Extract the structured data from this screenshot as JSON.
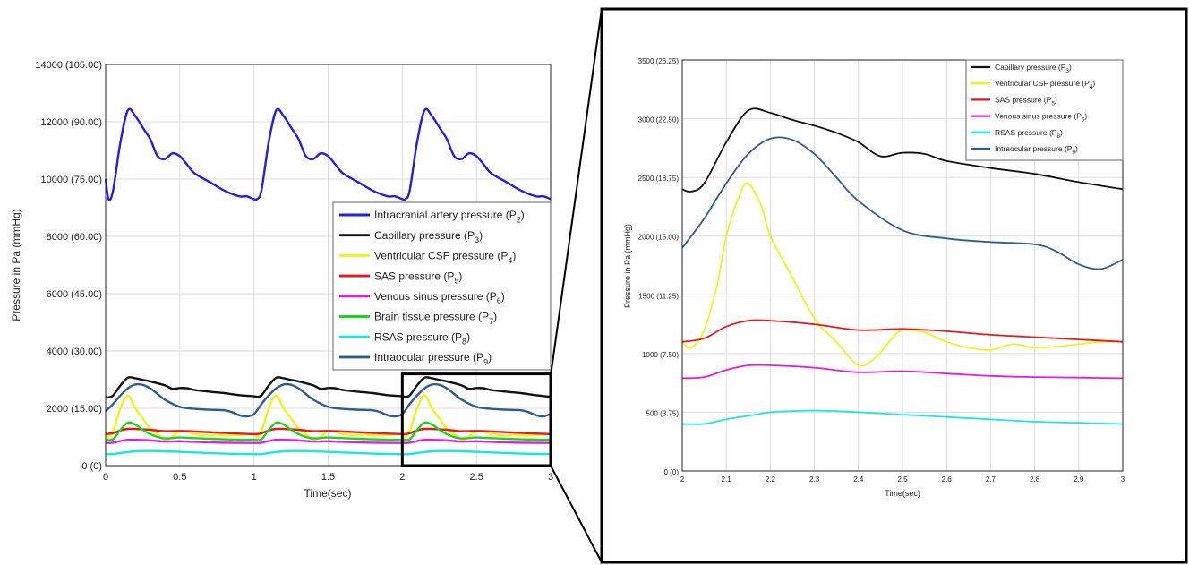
{
  "chart_data": [
    {
      "type": "line",
      "xlabel": "Time(sec)",
      "ylabel": "Pressure in Pa (mmHg)",
      "xlim": [
        0,
        3
      ],
      "ylim": [
        0,
        14000
      ],
      "xticks": [
        "0",
        "0.5",
        "1",
        "1.5",
        "2",
        "2.5",
        "3"
      ],
      "yticks": [
        "0 (0)",
        "2000 (15.00)",
        "4000 (30.00)",
        "6000 (45.00)",
        "8000 (60.00)",
        "10000 (75.00)",
        "12000 (90.00)",
        "14000 (105.00)"
      ],
      "grid": true,
      "legend_position": "center-right",
      "inset_box": {
        "x": [
          2,
          3
        ],
        "y": [
          0,
          3200
        ]
      },
      "series": [
        {
          "name": "Intracranial artery pressure (P",
          "sub": "2",
          "color": "#1f1fe6",
          "x": [
            0,
            0.02,
            0.05,
            0.1,
            0.15,
            0.2,
            0.25,
            0.3,
            0.35,
            0.4,
            0.45,
            0.5,
            0.55,
            0.6,
            0.7,
            0.8,
            0.9,
            0.95,
            1.0,
            1.02,
            1.05,
            1.1,
            1.15,
            1.2,
            1.25,
            1.3,
            1.35,
            1.4,
            1.45,
            1.5,
            1.55,
            1.6,
            1.7,
            1.8,
            1.9,
            1.95,
            2.0,
            2.02,
            2.05,
            2.1,
            2.15,
            2.2,
            2.25,
            2.3,
            2.35,
            2.4,
            2.45,
            2.5,
            2.55,
            2.6,
            2.7,
            2.8,
            2.9,
            2.95,
            3.0
          ],
          "y": [
            10000,
            9300,
            9600,
            11300,
            12400,
            12200,
            11800,
            11400,
            10800,
            10700,
            10900,
            10800,
            10500,
            10200,
            9900,
            9600,
            9400,
            9400,
            9300,
            9300,
            9600,
            11300,
            12400,
            12200,
            11800,
            11400,
            10800,
            10700,
            10900,
            10800,
            10500,
            10200,
            9900,
            9600,
            9400,
            9400,
            9300,
            9300,
            9600,
            11300,
            12400,
            12200,
            11800,
            11400,
            10800,
            10700,
            10900,
            10800,
            10500,
            10200,
            9900,
            9600,
            9400,
            9400,
            9300
          ]
        },
        {
          "name": "Capillary pressure (P",
          "sub": "3",
          "color": "#111111",
          "x": [
            0,
            0.02,
            0.05,
            0.1,
            0.15,
            0.2,
            0.25,
            0.3,
            0.4,
            0.45,
            0.5,
            0.55,
            0.6,
            0.7,
            0.8,
            0.9,
            1.0,
            1.02,
            1.05,
            1.1,
            1.15,
            1.2,
            1.25,
            1.3,
            1.4,
            1.45,
            1.5,
            1.55,
            1.6,
            1.7,
            1.8,
            1.9,
            2.0,
            2.02,
            2.05,
            2.1,
            2.15,
            2.2,
            2.25,
            2.3,
            2.4,
            2.45,
            2.5,
            2.55,
            2.6,
            2.7,
            2.8,
            2.9,
            3.0
          ],
          "y": [
            2400,
            2380,
            2450,
            2800,
            3070,
            3050,
            2990,
            2940,
            2800,
            2680,
            2710,
            2700,
            2640,
            2580,
            2530,
            2460,
            2420,
            2400,
            2450,
            2800,
            3070,
            3050,
            2990,
            2940,
            2800,
            2680,
            2710,
            2700,
            2640,
            2580,
            2530,
            2460,
            2420,
            2400,
            2450,
            2800,
            3070,
            3050,
            2990,
            2940,
            2800,
            2680,
            2710,
            2700,
            2640,
            2580,
            2530,
            2460,
            2400
          ]
        },
        {
          "name": "Ventricular CSF pressure (P",
          "sub": "4",
          "color": "#f2f21a",
          "x": [
            0,
            0.02,
            0.05,
            0.1,
            0.15,
            0.2,
            0.25,
            0.3,
            0.35,
            0.4,
            0.44,
            0.47,
            0.5,
            0.55,
            0.6,
            0.7,
            0.75,
            0.8,
            0.9,
            0.95,
            1.0,
            1.02,
            1.05,
            1.1,
            1.15,
            1.2,
            1.25,
            1.3,
            1.35,
            1.4,
            1.44,
            1.47,
            1.5,
            1.55,
            1.6,
            1.7,
            1.75,
            1.8,
            1.9,
            1.95,
            2.0,
            2.02,
            2.05,
            2.1,
            2.15,
            2.2,
            2.25,
            2.3,
            2.35,
            2.4,
            2.44,
            2.47,
            2.5,
            2.55,
            2.6,
            2.7,
            2.75,
            2.8,
            2.9,
            2.95,
            3.0
          ],
          "y": [
            1100,
            1000,
            1200,
            2000,
            2450,
            2000,
            1650,
            1300,
            1100,
            900,
            970,
            1100,
            1200,
            1180,
            1100,
            1050,
            1080,
            1050,
            1060,
            1080,
            1100,
            1000,
            1200,
            2000,
            2450,
            2000,
            1650,
            1300,
            1100,
            900,
            970,
            1100,
            1200,
            1180,
            1100,
            1050,
            1080,
            1050,
            1060,
            1080,
            1100,
            1000,
            1200,
            2000,
            2450,
            2000,
            1650,
            1300,
            1100,
            900,
            970,
            1100,
            1200,
            1180,
            1100,
            1050,
            1080,
            1050,
            1060,
            1080,
            1100
          ]
        },
        {
          "name": "SAS pressure (P",
          "sub": "5",
          "color": "#e61a1a",
          "x": [
            0,
            0.05,
            0.1,
            0.15,
            0.2,
            0.3,
            0.4,
            0.5,
            0.6,
            0.8,
            1.0,
            1.05,
            1.1,
            1.15,
            1.2,
            1.3,
            1.4,
            1.5,
            1.6,
            1.8,
            2.0,
            2.05,
            2.1,
            2.15,
            2.2,
            2.3,
            2.4,
            2.5,
            2.6,
            2.8,
            3.0
          ],
          "y": [
            1100,
            1130,
            1230,
            1280,
            1280,
            1250,
            1200,
            1210,
            1190,
            1140,
            1100,
            1130,
            1230,
            1280,
            1280,
            1250,
            1200,
            1210,
            1190,
            1140,
            1100,
            1130,
            1230,
            1280,
            1280,
            1250,
            1200,
            1210,
            1190,
            1140,
            1100
          ]
        },
        {
          "name": "Venous sinus pressure (P",
          "sub": "6",
          "color": "#e61ae6",
          "x": [
            0,
            0.05,
            0.1,
            0.15,
            0.2,
            0.3,
            0.4,
            0.5,
            0.6,
            0.8,
            1.0,
            1.05,
            1.1,
            1.15,
            1.2,
            1.3,
            1.4,
            1.5,
            1.6,
            1.8,
            2.0,
            2.05,
            2.1,
            2.15,
            2.2,
            2.3,
            2.4,
            2.5,
            2.6,
            2.8,
            3.0
          ],
          "y": [
            790,
            800,
            860,
            900,
            900,
            880,
            840,
            850,
            830,
            800,
            790,
            800,
            860,
            900,
            900,
            880,
            840,
            850,
            830,
            800,
            790,
            800,
            860,
            900,
            900,
            880,
            840,
            850,
            830,
            800,
            790
          ]
        },
        {
          "name": "Brain tissue pressure (P",
          "sub": "7",
          "color": "#1ad61a",
          "x": [
            0,
            0.05,
            0.1,
            0.15,
            0.2,
            0.25,
            0.3,
            0.35,
            0.4,
            0.5,
            0.6,
            0.8,
            1.0,
            1.05,
            1.1,
            1.15,
            1.2,
            1.25,
            1.3,
            1.35,
            1.4,
            1.5,
            1.6,
            1.8,
            2.0,
            2.05,
            2.1,
            2.15,
            2.2,
            2.25,
            2.3,
            2.35,
            2.4,
            2.5,
            2.6,
            2.8,
            3.0
          ],
          "y": [
            900,
            920,
            1250,
            1500,
            1430,
            1250,
            1100,
            1000,
            950,
            980,
            960,
            920,
            900,
            920,
            1250,
            1500,
            1430,
            1250,
            1100,
            1000,
            950,
            980,
            960,
            920,
            900,
            920,
            1250,
            1500,
            1430,
            1250,
            1100,
            1000,
            950,
            980,
            960,
            920,
            900
          ]
        },
        {
          "name": "RSAS pressure (P",
          "sub": "8",
          "color": "#1ae6e6",
          "x": [
            0,
            0.05,
            0.1,
            0.2,
            0.3,
            0.4,
            0.6,
            0.8,
            1.0,
            1.05,
            1.1,
            1.2,
            1.3,
            1.4,
            1.6,
            1.8,
            2.0,
            2.05,
            2.1,
            2.2,
            2.3,
            2.4,
            2.6,
            2.8,
            3.0
          ],
          "y": [
            400,
            400,
            440,
            500,
            510,
            500,
            460,
            420,
            400,
            400,
            440,
            500,
            510,
            500,
            460,
            420,
            400,
            400,
            440,
            500,
            510,
            500,
            460,
            420,
            400
          ]
        },
        {
          "name": "Intraocular pressure (P",
          "sub": "9",
          "color": "#2b5d94",
          "x": [
            0,
            0.05,
            0.1,
            0.15,
            0.2,
            0.25,
            0.3,
            0.35,
            0.4,
            0.5,
            0.6,
            0.7,
            0.8,
            0.85,
            0.9,
            0.95,
            1.0,
            1.05,
            1.1,
            1.15,
            1.2,
            1.25,
            1.3,
            1.35,
            1.4,
            1.5,
            1.6,
            1.7,
            1.8,
            1.85,
            1.9,
            1.95,
            2.0,
            2.05,
            2.1,
            2.15,
            2.2,
            2.25,
            2.3,
            2.35,
            2.4,
            2.5,
            2.6,
            2.7,
            2.8,
            2.85,
            2.9,
            2.95,
            3.0
          ],
          "y": [
            1900,
            2150,
            2450,
            2700,
            2830,
            2820,
            2700,
            2500,
            2300,
            2050,
            1980,
            1950,
            1930,
            1870,
            1760,
            1720,
            1800,
            2150,
            2450,
            2700,
            2830,
            2820,
            2700,
            2500,
            2300,
            2050,
            1980,
            1950,
            1930,
            1870,
            1760,
            1720,
            1800,
            2150,
            2450,
            2700,
            2830,
            2820,
            2700,
            2500,
            2300,
            2050,
            1980,
            1950,
            1930,
            1870,
            1760,
            1720,
            1800
          ]
        }
      ]
    },
    {
      "type": "line",
      "xlabel": "Time(sec)",
      "ylabel": "Pressure in Pa (mmHg)",
      "xlim": [
        2,
        3
      ],
      "ylim": [
        0,
        3500
      ],
      "xticks": [
        "2",
        "2.1",
        "2.2",
        "2.3",
        "2.4",
        "2.5",
        "2.6",
        "2.7",
        "2.8",
        "2.9",
        "3"
      ],
      "yticks": [
        "0 (0)",
        "500 (3.75)",
        "1000 (7.50)",
        "1500 (11.25)",
        "2000 (15.00)",
        "2500 (18.75)",
        "3000 (22.50)",
        "3500 (26.25)"
      ],
      "grid": true,
      "legend_position": "top-right",
      "series": [
        {
          "name": "Capillary pressure (P",
          "sub": "3",
          "color": "#111111",
          "x": [
            2,
            2.02,
            2.05,
            2.1,
            2.15,
            2.2,
            2.25,
            2.3,
            2.35,
            2.4,
            2.45,
            2.5,
            2.55,
            2.6,
            2.7,
            2.8,
            2.9,
            3.0
          ],
          "y": [
            2400,
            2380,
            2450,
            2800,
            3070,
            3050,
            2990,
            2940,
            2880,
            2800,
            2680,
            2710,
            2700,
            2640,
            2580,
            2530,
            2460,
            2400
          ]
        },
        {
          "name": "Ventricular CSF pressure (P",
          "sub": "4",
          "color": "#f2f21a",
          "x": [
            2,
            2.02,
            2.05,
            2.08,
            2.1,
            2.13,
            2.15,
            2.18,
            2.2,
            2.25,
            2.3,
            2.35,
            2.4,
            2.44,
            2.47,
            2.5,
            2.55,
            2.6,
            2.65,
            2.7,
            2.75,
            2.8,
            2.85,
            2.9,
            2.95,
            3.0
          ],
          "y": [
            1100,
            1050,
            1200,
            1600,
            2000,
            2350,
            2450,
            2250,
            2000,
            1650,
            1300,
            1100,
            900,
            970,
            1100,
            1200,
            1180,
            1100,
            1050,
            1030,
            1080,
            1050,
            1060,
            1080,
            1100,
            1100
          ]
        },
        {
          "name": "SAS pressure (P",
          "sub": "5",
          "color": "#e61a1a",
          "x": [
            2,
            2.05,
            2.1,
            2.15,
            2.2,
            2.3,
            2.4,
            2.5,
            2.6,
            2.7,
            2.8,
            2.9,
            3.0
          ],
          "y": [
            1100,
            1130,
            1230,
            1280,
            1280,
            1250,
            1200,
            1210,
            1190,
            1160,
            1140,
            1120,
            1100
          ]
        },
        {
          "name": "Venous sinus pressure (P",
          "sub": "6",
          "color": "#e61ae6",
          "x": [
            2,
            2.05,
            2.1,
            2.15,
            2.2,
            2.3,
            2.4,
            2.5,
            2.6,
            2.7,
            2.8,
            2.9,
            3.0
          ],
          "y": [
            790,
            800,
            860,
            900,
            900,
            880,
            840,
            850,
            830,
            810,
            800,
            795,
            790
          ]
        },
        {
          "name": "RSAS pressure (P",
          "sub": "8",
          "color": "#1ae6e6",
          "x": [
            2,
            2.05,
            2.1,
            2.15,
            2.2,
            2.25,
            2.3,
            2.35,
            2.4,
            2.5,
            2.6,
            2.7,
            2.8,
            2.9,
            3.0
          ],
          "y": [
            400,
            400,
            440,
            470,
            500,
            510,
            515,
            510,
            500,
            480,
            460,
            440,
            420,
            410,
            400
          ]
        },
        {
          "name": "Intraocular pressure (P",
          "sub": "9",
          "color": "#2b5d94",
          "x": [
            2,
            2.05,
            2.1,
            2.15,
            2.2,
            2.25,
            2.3,
            2.35,
            2.4,
            2.5,
            2.6,
            2.7,
            2.8,
            2.85,
            2.9,
            2.95,
            3.0
          ],
          "y": [
            1900,
            2150,
            2450,
            2700,
            2830,
            2820,
            2700,
            2500,
            2300,
            2050,
            1980,
            1950,
            1930,
            1870,
            1760,
            1720,
            1800
          ]
        }
      ]
    }
  ]
}
